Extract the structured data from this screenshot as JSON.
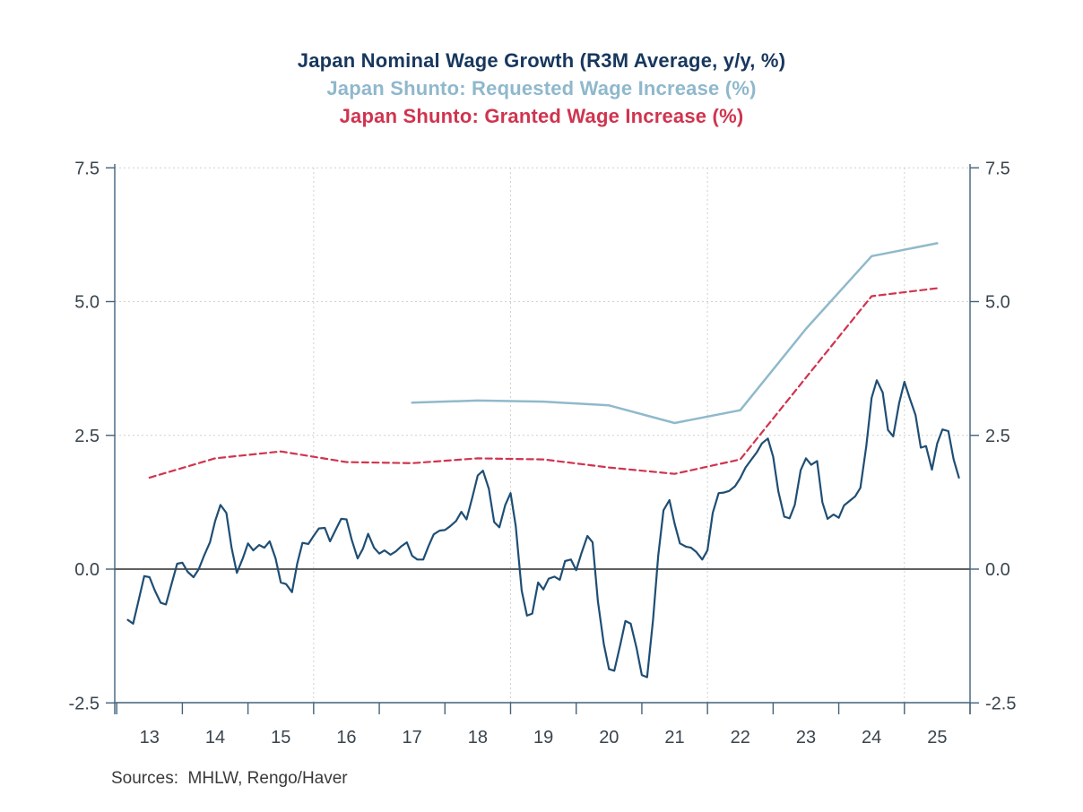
{
  "titles": [
    {
      "text": "Japan Nominal Wage Growth (R3M Average, y/y, %)",
      "color": "#17375E"
    },
    {
      "text": "Japan Shunto: Requested Wage Increase (%)",
      "color": "#8FB8CC"
    },
    {
      "text": "Japan Shunto: Granted Wage Increase (%)",
      "color": "#D0344F"
    }
  ],
  "source_note": "Sources:  MHLW, Rengo/Haver",
  "colors": {
    "spine": "#42627B",
    "tick_label": "#39444D",
    "gridline": "#D2D0CB",
    "zero_line": "#000000",
    "source_text": "#3A3A3A"
  },
  "chart_data": {
    "type": "line",
    "title": "Japan Nominal Wage Growth (R3M Average, y/y, %)",
    "x_axis": {
      "range": [
        2012.97,
        2026.0
      ],
      "tick_positions": [
        2013,
        2014,
        2015,
        2016,
        2017,
        2018,
        2019,
        2020,
        2021,
        2022,
        2023,
        2024,
        2025,
        2026
      ],
      "label_positions": [
        2013.5,
        2014.5,
        2015.5,
        2016.5,
        2017.5,
        2018.5,
        2019.5,
        2020.5,
        2021.5,
        2022.5,
        2023.5,
        2024.5,
        2025.5
      ],
      "labels": [
        "13",
        "14",
        "15",
        "16",
        "17",
        "18",
        "19",
        "20",
        "21",
        "22",
        "23",
        "24",
        "25"
      ],
      "gridlines": [
        2016,
        2019,
        2022,
        2025
      ]
    },
    "y_axis": {
      "range": [
        -2.78,
        7.78
      ],
      "ticks": [
        7.5,
        5.0,
        2.5,
        0.0,
        -2.5
      ],
      "labels": [
        "7.5",
        "5.0",
        "2.5",
        "0.0",
        "-2.5"
      ],
      "gridlines": [
        7.5,
        5.0,
        2.5
      ],
      "zero_line": 0.0,
      "unit": "%"
    },
    "series": [
      {
        "id": "shunto-granted",
        "name": "Japan Shunto: Granted Wage Increase (%)",
        "color": "#D0344F",
        "line_style": "dashed",
        "width": 2.2,
        "points": [
          [
            2013.5,
            1.71
          ],
          [
            2014.5,
            2.07
          ],
          [
            2015.5,
            2.2
          ],
          [
            2016.5,
            2.0
          ],
          [
            2017.5,
            1.98
          ],
          [
            2018.5,
            2.07
          ],
          [
            2019.5,
            2.05
          ],
          [
            2020.5,
            1.9
          ],
          [
            2021.5,
            1.78
          ],
          [
            2022.5,
            2.05
          ],
          [
            2023.5,
            3.58
          ],
          [
            2024.5,
            5.1
          ],
          [
            2025.5,
            5.25
          ]
        ]
      },
      {
        "id": "shunto-requested",
        "name": "Japan Shunto: Requested Wage Increase (%)",
        "color": "#90B9CB",
        "line_style": "solid",
        "width": 2.5,
        "points": [
          [
            2017.5,
            3.11
          ],
          [
            2018.5,
            3.15
          ],
          [
            2019.5,
            3.13
          ],
          [
            2020.5,
            3.06
          ],
          [
            2021.5,
            2.73
          ],
          [
            2022.5,
            2.97
          ],
          [
            2023.5,
            4.49
          ],
          [
            2024.5,
            5.85
          ],
          [
            2025.5,
            6.09
          ]
        ]
      },
      {
        "id": "nominal-wage-growth",
        "name": "Japan Nominal Wage Growth (R3M Average, y/y, %)",
        "color": "#1F4E74",
        "line_style": "solid",
        "width": 2.2,
        "points": [
          [
            2013.17,
            -0.95
          ],
          [
            2013.25,
            -1.02
          ],
          [
            2013.33,
            -0.6
          ],
          [
            2013.42,
            -0.13
          ],
          [
            2013.5,
            -0.15
          ],
          [
            2013.58,
            -0.4
          ],
          [
            2013.67,
            -0.63
          ],
          [
            2013.75,
            -0.66
          ],
          [
            2013.83,
            -0.3
          ],
          [
            2013.92,
            0.1
          ],
          [
            2014.0,
            0.12
          ],
          [
            2014.08,
            -0.05
          ],
          [
            2014.17,
            -0.15
          ],
          [
            2014.25,
            0.0
          ],
          [
            2014.33,
            0.25
          ],
          [
            2014.42,
            0.5
          ],
          [
            2014.5,
            0.9
          ],
          [
            2014.58,
            1.2
          ],
          [
            2014.67,
            1.05
          ],
          [
            2014.75,
            0.4
          ],
          [
            2014.83,
            -0.07
          ],
          [
            2014.92,
            0.2
          ],
          [
            2015.0,
            0.48
          ],
          [
            2015.08,
            0.35
          ],
          [
            2015.17,
            0.45
          ],
          [
            2015.25,
            0.4
          ],
          [
            2015.33,
            0.52
          ],
          [
            2015.42,
            0.2
          ],
          [
            2015.5,
            -0.25
          ],
          [
            2015.58,
            -0.28
          ],
          [
            2015.67,
            -0.43
          ],
          [
            2015.75,
            0.1
          ],
          [
            2015.83,
            0.49
          ],
          [
            2015.92,
            0.47
          ],
          [
            2016.0,
            0.62
          ],
          [
            2016.08,
            0.76
          ],
          [
            2016.17,
            0.77
          ],
          [
            2016.25,
            0.52
          ],
          [
            2016.33,
            0.72
          ],
          [
            2016.42,
            0.94
          ],
          [
            2016.5,
            0.93
          ],
          [
            2016.58,
            0.55
          ],
          [
            2016.67,
            0.2
          ],
          [
            2016.75,
            0.38
          ],
          [
            2016.83,
            0.66
          ],
          [
            2016.92,
            0.4
          ],
          [
            2017.0,
            0.29
          ],
          [
            2017.08,
            0.35
          ],
          [
            2017.17,
            0.27
          ],
          [
            2017.25,
            0.33
          ],
          [
            2017.33,
            0.42
          ],
          [
            2017.42,
            0.5
          ],
          [
            2017.5,
            0.25
          ],
          [
            2017.58,
            0.18
          ],
          [
            2017.67,
            0.18
          ],
          [
            2017.75,
            0.43
          ],
          [
            2017.83,
            0.65
          ],
          [
            2017.92,
            0.72
          ],
          [
            2018.0,
            0.73
          ],
          [
            2018.08,
            0.8
          ],
          [
            2018.17,
            0.9
          ],
          [
            2018.25,
            1.07
          ],
          [
            2018.33,
            0.93
          ],
          [
            2018.42,
            1.35
          ],
          [
            2018.5,
            1.75
          ],
          [
            2018.58,
            1.84
          ],
          [
            2018.67,
            1.5
          ],
          [
            2018.75,
            0.88
          ],
          [
            2018.83,
            0.78
          ],
          [
            2018.92,
            1.2
          ],
          [
            2019.0,
            1.42
          ],
          [
            2019.08,
            0.8
          ],
          [
            2019.17,
            -0.4
          ],
          [
            2019.25,
            -0.87
          ],
          [
            2019.33,
            -0.83
          ],
          [
            2019.42,
            -0.25
          ],
          [
            2019.5,
            -0.38
          ],
          [
            2019.58,
            -0.18
          ],
          [
            2019.67,
            -0.14
          ],
          [
            2019.75,
            -0.2
          ],
          [
            2019.83,
            0.15
          ],
          [
            2019.92,
            0.18
          ],
          [
            2020.0,
            -0.02
          ],
          [
            2020.08,
            0.3
          ],
          [
            2020.17,
            0.62
          ],
          [
            2020.25,
            0.5
          ],
          [
            2020.33,
            -0.6
          ],
          [
            2020.42,
            -1.4
          ],
          [
            2020.5,
            -1.87
          ],
          [
            2020.58,
            -1.9
          ],
          [
            2020.67,
            -1.42
          ],
          [
            2020.75,
            -0.97
          ],
          [
            2020.83,
            -1.02
          ],
          [
            2020.92,
            -1.48
          ],
          [
            2021.0,
            -1.98
          ],
          [
            2021.08,
            -2.02
          ],
          [
            2021.17,
            -0.95
          ],
          [
            2021.25,
            0.25
          ],
          [
            2021.33,
            1.1
          ],
          [
            2021.42,
            1.29
          ],
          [
            2021.5,
            0.85
          ],
          [
            2021.58,
            0.48
          ],
          [
            2021.67,
            0.42
          ],
          [
            2021.75,
            0.4
          ],
          [
            2021.83,
            0.32
          ],
          [
            2021.92,
            0.18
          ],
          [
            2022.0,
            0.35
          ],
          [
            2022.08,
            1.05
          ],
          [
            2022.17,
            1.42
          ],
          [
            2022.25,
            1.43
          ],
          [
            2022.33,
            1.46
          ],
          [
            2022.42,
            1.55
          ],
          [
            2022.5,
            1.7
          ],
          [
            2022.58,
            1.9
          ],
          [
            2022.67,
            2.05
          ],
          [
            2022.75,
            2.18
          ],
          [
            2022.83,
            2.35
          ],
          [
            2022.92,
            2.44
          ],
          [
            2023.0,
            2.1
          ],
          [
            2023.08,
            1.45
          ],
          [
            2023.17,
            0.98
          ],
          [
            2023.25,
            0.95
          ],
          [
            2023.33,
            1.2
          ],
          [
            2023.42,
            1.85
          ],
          [
            2023.5,
            2.07
          ],
          [
            2023.58,
            1.95
          ],
          [
            2023.67,
            2.02
          ],
          [
            2023.75,
            1.25
          ],
          [
            2023.83,
            0.94
          ],
          [
            2023.92,
            1.02
          ],
          [
            2024.0,
            0.96
          ],
          [
            2024.08,
            1.19
          ],
          [
            2024.17,
            1.28
          ],
          [
            2024.25,
            1.36
          ],
          [
            2024.33,
            1.52
          ],
          [
            2024.42,
            2.3
          ],
          [
            2024.5,
            3.2
          ],
          [
            2024.58,
            3.53
          ],
          [
            2024.67,
            3.3
          ],
          [
            2024.75,
            2.6
          ],
          [
            2024.83,
            2.48
          ],
          [
            2024.92,
            3.1
          ],
          [
            2025.0,
            3.5
          ],
          [
            2025.08,
            3.2
          ],
          [
            2025.17,
            2.88
          ],
          [
            2025.25,
            2.27
          ],
          [
            2025.33,
            2.3
          ],
          [
            2025.42,
            1.86
          ],
          [
            2025.5,
            2.35
          ],
          [
            2025.58,
            2.61
          ],
          [
            2025.67,
            2.58
          ],
          [
            2025.75,
            2.05
          ],
          [
            2025.83,
            1.71
          ]
        ]
      }
    ]
  }
}
